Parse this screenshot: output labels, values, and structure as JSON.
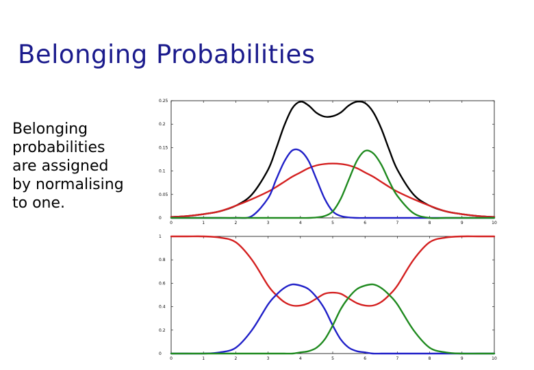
{
  "slide": {
    "title": "Belonging Probabilities",
    "body_lines": [
      "Belonging",
      "probabilities",
      "are assigned",
      "by normalising",
      "to one."
    ]
  },
  "colors": {
    "title": "#1a1a8c",
    "black": "#000000",
    "red": "#d42020",
    "blue": "#2020c8",
    "green": "#1f8a1f"
  },
  "chart_data": [
    {
      "type": "line",
      "title": "",
      "xlabel": "",
      "ylabel": "",
      "xlim": [
        0,
        10
      ],
      "ylim": [
        0,
        0.25
      ],
      "xticks": [
        "0",
        "1",
        "2",
        "3",
        "4",
        "5",
        "6",
        "7",
        "8",
        "9",
        "10"
      ],
      "yticks": [
        "0",
        "0.05",
        "0.1",
        "0.15",
        "0.2",
        "0.25"
      ],
      "grid": false,
      "x": [
        0,
        0.5,
        1,
        1.5,
        2,
        2.5,
        3,
        3.25,
        3.5,
        3.75,
        4,
        4.25,
        4.5,
        4.75,
        5,
        5.25,
        5.5,
        5.75,
        6,
        6.25,
        6.5,
        6.75,
        7,
        7.5,
        8,
        8.5,
        9,
        9.5,
        10
      ],
      "series": [
        {
          "color": "black",
          "values": [
            0.002,
            0.004,
            0.008,
            0.014,
            0.026,
            0.05,
            0.103,
            0.148,
            0.197,
            0.234,
            0.248,
            0.24,
            0.224,
            0.216,
            0.217,
            0.225,
            0.24,
            0.248,
            0.245,
            0.226,
            0.191,
            0.145,
            0.103,
            0.05,
            0.026,
            0.014,
            0.008,
            0.004,
            0.002
          ]
        },
        {
          "color": "red",
          "values": [
            0.002,
            0.004,
            0.008,
            0.014,
            0.026,
            0.04,
            0.056,
            0.066,
            0.077,
            0.088,
            0.097,
            0.106,
            0.112,
            0.115,
            0.116,
            0.115,
            0.112,
            0.106,
            0.097,
            0.088,
            0.077,
            0.066,
            0.056,
            0.04,
            0.026,
            0.014,
            0.008,
            0.004,
            0.002
          ]
        },
        {
          "color": "blue",
          "values": [
            0,
            0,
            0,
            0,
            0,
            0.004,
            0.042,
            0.082,
            0.12,
            0.144,
            0.143,
            0.122,
            0.082,
            0.041,
            0.014,
            0.004,
            0.001,
            0,
            0,
            0,
            0,
            0,
            0,
            0,
            0,
            0,
            0,
            0,
            0
          ]
        },
        {
          "color": "green",
          "values": [
            0,
            0,
            0,
            0,
            0,
            0,
            0,
            0,
            0,
            0,
            0,
            0,
            0.001,
            0.004,
            0.014,
            0.041,
            0.082,
            0.122,
            0.143,
            0.138,
            0.114,
            0.078,
            0.047,
            0.01,
            0,
            0,
            0,
            0,
            0
          ]
        }
      ]
    },
    {
      "type": "line",
      "title": "",
      "xlabel": "",
      "ylabel": "",
      "xlim": [
        0,
        10
      ],
      "ylim": [
        0,
        1
      ],
      "xticks": [
        "0",
        "1",
        "2",
        "3",
        "4",
        "5",
        "6",
        "7",
        "8",
        "9",
        "10"
      ],
      "yticks": [
        "0",
        "0.2",
        "0.4",
        "0.6",
        "0.8",
        "1"
      ],
      "grid": false,
      "x": [
        0,
        0.5,
        1,
        1.5,
        2,
        2.5,
        3,
        3.25,
        3.5,
        3.75,
        4,
        4.25,
        4.5,
        4.75,
        5,
        5.25,
        5.5,
        5.75,
        6,
        6.25,
        6.5,
        6.75,
        7,
        7.5,
        8,
        8.5,
        9,
        9.5,
        10
      ],
      "series": [
        {
          "color": "red",
          "values": [
            1,
            1,
            1,
            0.99,
            0.95,
            0.8,
            0.58,
            0.5,
            0.44,
            0.41,
            0.41,
            0.43,
            0.47,
            0.51,
            0.52,
            0.51,
            0.47,
            0.43,
            0.41,
            0.41,
            0.44,
            0.5,
            0.58,
            0.8,
            0.95,
            0.99,
            1,
            1,
            1
          ]
        },
        {
          "color": "blue",
          "values": [
            0,
            0,
            0,
            0.01,
            0.05,
            0.2,
            0.42,
            0.5,
            0.56,
            0.59,
            0.58,
            0.55,
            0.48,
            0.38,
            0.24,
            0.12,
            0.05,
            0.02,
            0.01,
            0,
            0,
            0,
            0,
            0,
            0,
            0,
            0,
            0,
            0
          ]
        },
        {
          "color": "green",
          "values": [
            0,
            0,
            0,
            0,
            0,
            0,
            0,
            0,
            0,
            0,
            0.01,
            0.02,
            0.05,
            0.12,
            0.24,
            0.38,
            0.48,
            0.55,
            0.58,
            0.59,
            0.56,
            0.5,
            0.42,
            0.2,
            0.05,
            0.01,
            0,
            0,
            0
          ]
        }
      ]
    }
  ]
}
